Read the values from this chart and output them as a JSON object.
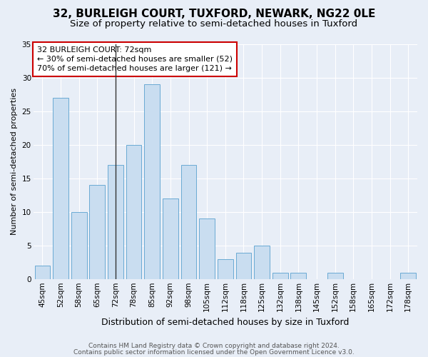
{
  "title_line1": "32, BURLEIGH COURT, TUXFORD, NEWARK, NG22 0LE",
  "title_line2": "Size of property relative to semi-detached houses in Tuxford",
  "xlabel": "Distribution of semi-detached houses by size in Tuxford",
  "ylabel": "Number of semi-detached properties",
  "categories": [
    "45sqm",
    "52sqm",
    "58sqm",
    "65sqm",
    "72sqm",
    "78sqm",
    "85sqm",
    "92sqm",
    "98sqm",
    "105sqm",
    "112sqm",
    "118sqm",
    "125sqm",
    "132sqm",
    "138sqm",
    "145sqm",
    "152sqm",
    "158sqm",
    "165sqm",
    "172sqm",
    "178sqm"
  ],
  "values": [
    2,
    27,
    10,
    14,
    17,
    20,
    29,
    12,
    17,
    9,
    3,
    4,
    5,
    1,
    1,
    0,
    1,
    0,
    0,
    0,
    1
  ],
  "bar_color": "#c9ddf0",
  "bar_edge_color": "#6aaad4",
  "annotation_box_facecolor": "#ffffff",
  "annotation_border_color": "#cc0000",
  "annotation_text_line1": "32 BURLEIGH COURT: 72sqm",
  "annotation_text_line2": "← 30% of semi-detached houses are smaller (52)",
  "annotation_text_line3": "70% of semi-detached houses are larger (121) →",
  "highlight_index": 4,
  "vline_color": "#333333",
  "ylim": [
    0,
    35
  ],
  "yticks": [
    0,
    5,
    10,
    15,
    20,
    25,
    30,
    35
  ],
  "bg_color": "#e8eef7",
  "plot_bg_color": "#e8eef7",
  "grid_color": "#ffffff",
  "footer_line1": "Contains HM Land Registry data © Crown copyright and database right 2024.",
  "footer_line2": "Contains public sector information licensed under the Open Government Licence v3.0.",
  "title_fontsize": 11,
  "subtitle_fontsize": 9.5,
  "xlabel_fontsize": 9,
  "ylabel_fontsize": 8,
  "tick_fontsize": 7.5,
  "annotation_fontsize": 8,
  "footer_fontsize": 6.5
}
